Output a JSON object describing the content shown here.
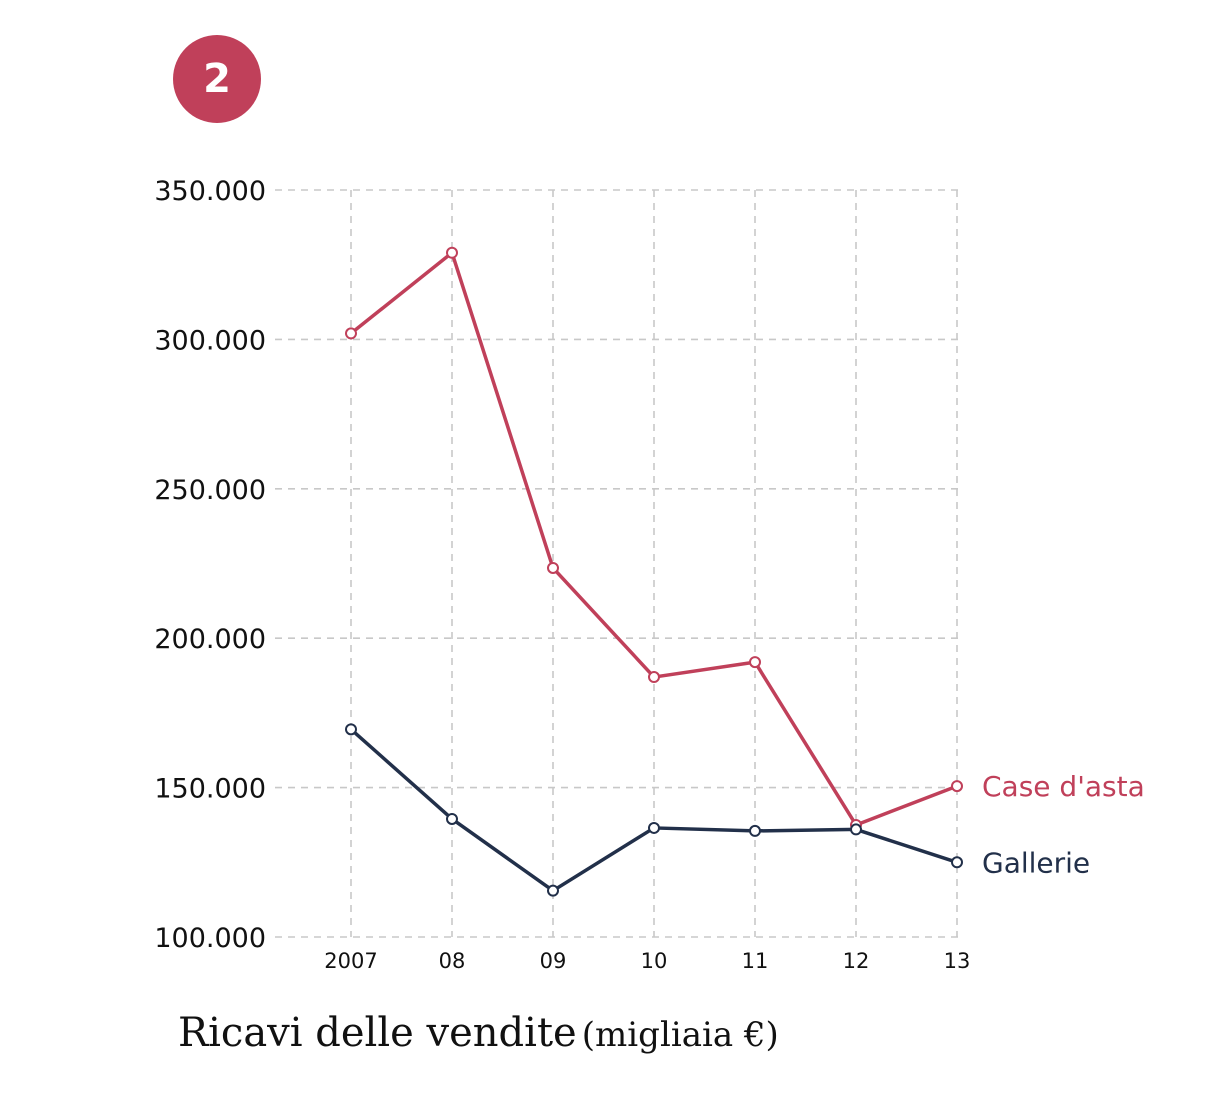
{
  "badge": {
    "label": "2",
    "color": "#c0405a"
  },
  "caption": {
    "title": "Ricavi delle vendite",
    "unit": "(migliaia €)"
  },
  "chart_data": {
    "type": "line",
    "categories": [
      "2007",
      "08",
      "09",
      "10",
      "11",
      "12",
      "13"
    ],
    "ylim": [
      100000,
      350000
    ],
    "yticks": [
      100000,
      150000,
      200000,
      250000,
      300000,
      350000
    ],
    "ytick_labels": [
      "100.000",
      "150.000",
      "200.000",
      "250.000",
      "300.000",
      "350.000"
    ],
    "grid": true,
    "series": [
      {
        "name": "Case d'asta",
        "color": "#c0405a",
        "values": [
          302000,
          329000,
          223500,
          187000,
          192000,
          137500,
          150500
        ]
      },
      {
        "name": "Gallerie",
        "color": "#22304a",
        "values": [
          169500,
          139500,
          115500,
          136500,
          135500,
          136000,
          125000
        ]
      }
    ]
  }
}
